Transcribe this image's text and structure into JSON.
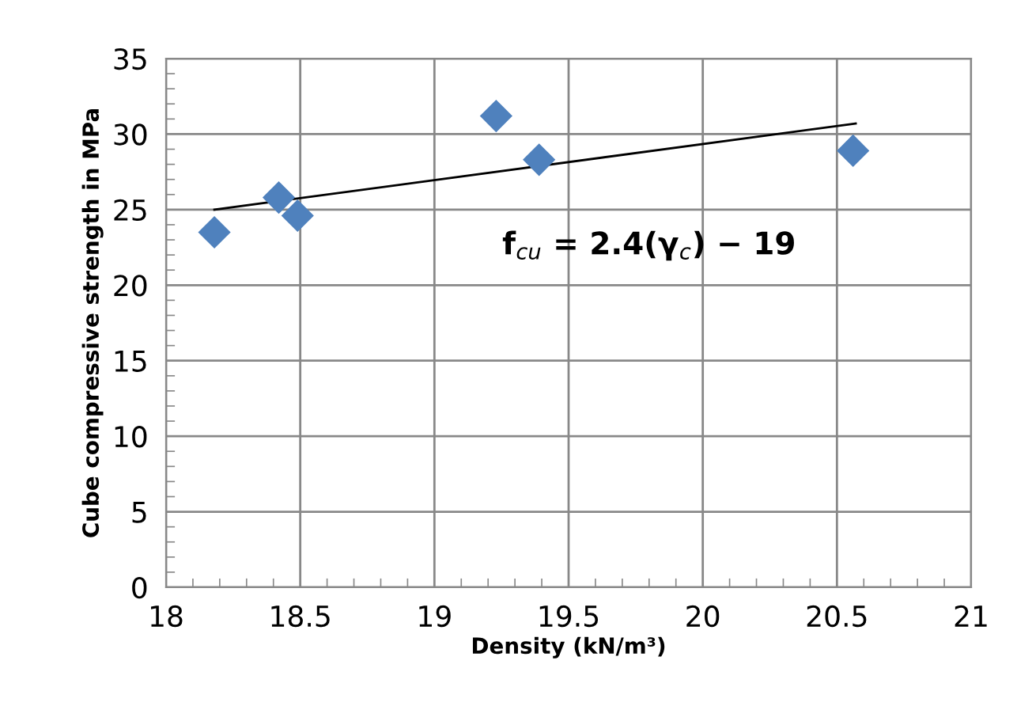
{
  "chart_data": {
    "type": "scatter",
    "xlabel": "Density (kN/m³)",
    "ylabel": "Cube compressive strength in MPa",
    "annotations": [
      "f$_{cu}$ = 2.4(γ$_{c}$) − 19"
    ],
    "series": [
      {
        "color": "#4f81bd",
        "marker": "diamond",
        "x": [
          18.18,
          18.42,
          18.49,
          19.23,
          19.39,
          20.56
        ],
        "values": [
          23.5,
          25.8,
          24.6,
          31.2,
          28.3,
          28.9
        ]
      },
      {
        "type": "line",
        "color": "#000000",
        "marker": "none",
        "line_style": "solid",
        "x": [
          18.18,
          20.57
        ],
        "values": [
          25.0,
          30.7
        ]
      }
    ],
    "xlim": [
      18,
      21
    ],
    "xticks": [
      18,
      18.5,
      19,
      19.5,
      20,
      20.5,
      21
    ],
    "ylim": [
      0,
      35
    ],
    "yticks": [
      0,
      5,
      10,
      15,
      20,
      25,
      30,
      35
    ],
    "grid": true,
    "legend": false
  }
}
